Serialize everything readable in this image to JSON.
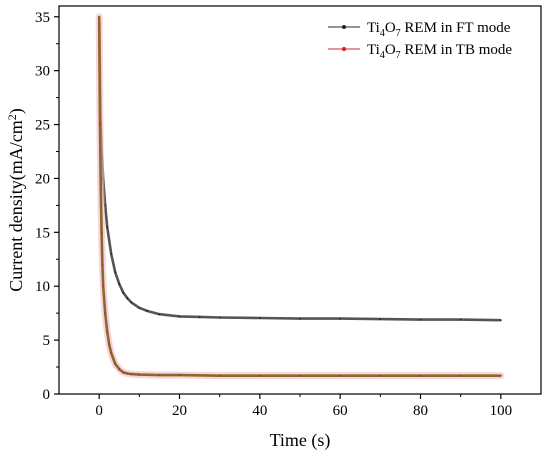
{
  "chart_data": {
    "type": "line",
    "xlabel": "Time (s)",
    "ylabel": "Current density(mA/cm",
    "ylabel_sup": "2",
    "ylabel_close": ")",
    "xlim": [
      -10,
      110
    ],
    "ylim": [
      0,
      36
    ],
    "xticks": [
      0,
      20,
      40,
      60,
      80,
      100
    ],
    "yticks": [
      0,
      5,
      10,
      15,
      20,
      25,
      30,
      35
    ],
    "grid": false,
    "legend_position": "top-right",
    "series": [
      {
        "name_parts": [
          "Ti",
          "4",
          "O",
          "7",
          " REM in FT mode"
        ],
        "color": "#555555",
        "marker_color": "#222222",
        "x": [
          0,
          0.3,
          0.6,
          1,
          1.5,
          2,
          3,
          4,
          5,
          6,
          7,
          8,
          10,
          12,
          15,
          20,
          25,
          30,
          40,
          50,
          60,
          70,
          80,
          90,
          100
        ],
        "y": [
          35,
          26,
          22.5,
          20,
          17.5,
          15.5,
          13,
          11.3,
          10.2,
          9.4,
          8.9,
          8.5,
          8.0,
          7.7,
          7.4,
          7.2,
          7.15,
          7.1,
          7.05,
          7.0,
          7.0,
          6.95,
          6.9,
          6.9,
          6.85
        ]
      },
      {
        "name_parts": [
          "Ti",
          "4",
          "O",
          "7",
          " REM in TB mode"
        ],
        "color": "#e05050",
        "marker_color": "#d02020",
        "x": [
          0,
          0.2,
          0.4,
          0.6,
          0.8,
          1,
          1.5,
          2,
          2.5,
          3,
          4,
          5,
          6,
          7,
          8,
          10,
          15,
          20,
          30,
          40,
          50,
          60,
          70,
          80,
          90,
          100
        ],
        "y": [
          35,
          25,
          19,
          15,
          12,
          10,
          7.5,
          5.8,
          4.6,
          3.8,
          2.8,
          2.3,
          2.0,
          1.9,
          1.85,
          1.8,
          1.75,
          1.75,
          1.7,
          1.7,
          1.7,
          1.7,
          1.7,
          1.7,
          1.7,
          1.7
        ]
      }
    ]
  }
}
